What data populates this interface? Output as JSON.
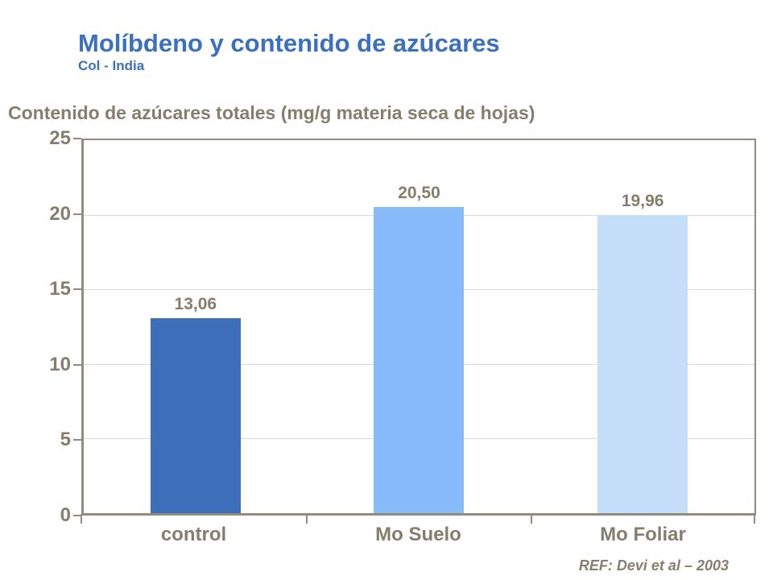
{
  "header": {
    "title": "Molíbdeno y contenido de azúcares",
    "subtitle": "Col - India",
    "title_color": "#3B6FC0"
  },
  "footer": {
    "reference": "REF: Devi et al – 2003"
  },
  "colors": {
    "text": "#867D6C",
    "axis": "#938B7B",
    "gridline": "#D9D9D9",
    "background": "#FFFFFF"
  },
  "chart_data": {
    "type": "bar",
    "title": "Contenido de azúcares totales (mg/g materia seca de hojas)",
    "categories": [
      "control",
      "Mo Suelo",
      "Mo Foliar"
    ],
    "values": [
      13.06,
      20.5,
      19.96
    ],
    "value_labels": [
      "13,06",
      "20,50",
      "19,96"
    ],
    "bar_colors": [
      "#3D6EB9",
      "#87BAF8",
      "#C5DEF9"
    ],
    "xlabel": "",
    "ylabel": "",
    "ylim": [
      0,
      25
    ],
    "ytick_labels": [
      "25",
      "20",
      "15",
      "10",
      "5",
      "0"
    ],
    "ytick_step": 5,
    "grid": "horizontal",
    "legend": "none"
  }
}
